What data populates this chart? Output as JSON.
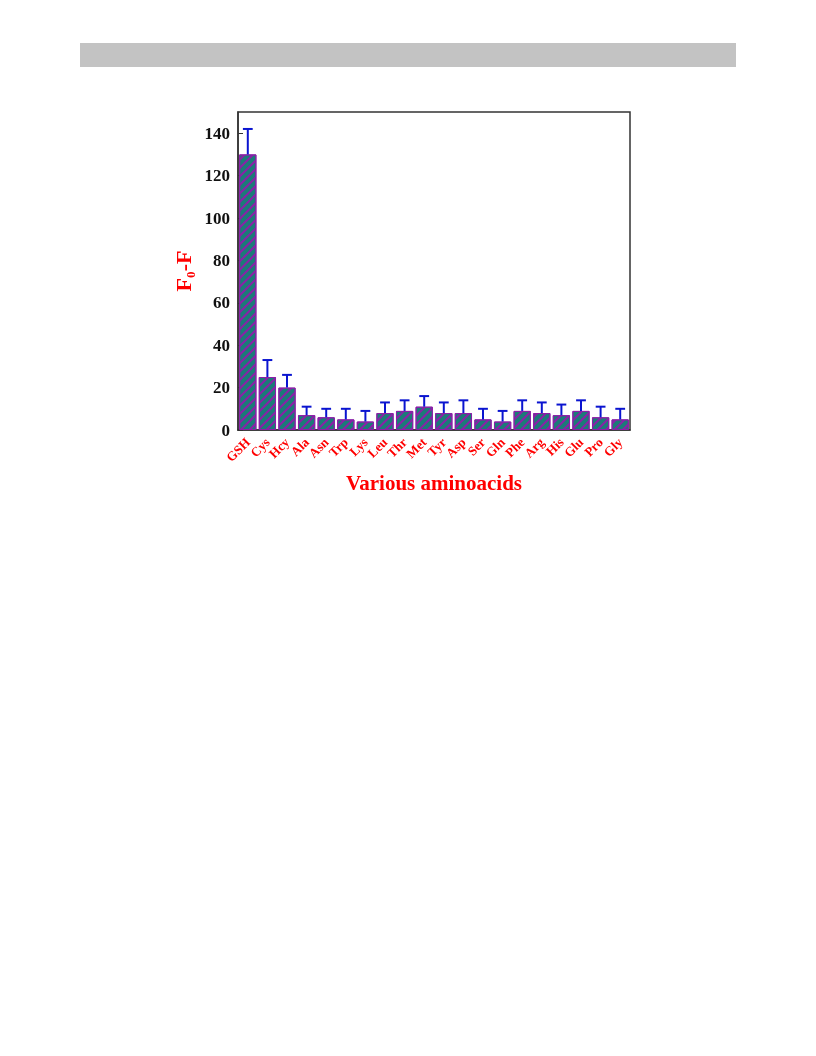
{
  "chart_data": {
    "type": "bar",
    "xlabel": "Various aminoacids",
    "ylabel": "F₀-F",
    "categories": [
      "GSH",
      "Cys",
      "Hcy",
      "Ala",
      "Asn",
      "Trp",
      "Lys",
      "Leu",
      "Thr",
      "Met",
      "Tyr",
      "Asp",
      "Ser",
      "Gln",
      "Phe",
      "Arg",
      "His",
      "Glu",
      "Pro",
      "Gly"
    ],
    "values": [
      130,
      25,
      20,
      7,
      6,
      5,
      4,
      8,
      9,
      11,
      8,
      8,
      5,
      4,
      9,
      8,
      7,
      9,
      6,
      5
    ],
    "errors": [
      [
        130,
        142
      ],
      [
        25,
        33
      ],
      [
        20,
        26
      ],
      [
        7,
        11
      ],
      [
        6,
        10
      ],
      [
        5,
        10
      ],
      [
        4,
        9
      ],
      [
        8,
        13
      ],
      [
        9,
        14
      ],
      [
        11,
        16
      ],
      [
        8,
        13
      ],
      [
        8,
        14
      ],
      [
        5,
        10
      ],
      [
        4,
        9
      ],
      [
        9,
        14
      ],
      [
        8,
        13
      ],
      [
        7,
        12
      ],
      [
        9,
        14
      ],
      [
        6,
        11
      ],
      [
        5,
        10
      ]
    ],
    "color": "#1b7b78",
    "ylim": [
      0,
      150
    ],
    "yticks": [
      0,
      20,
      40,
      60,
      80,
      100,
      120,
      140
    ]
  }
}
